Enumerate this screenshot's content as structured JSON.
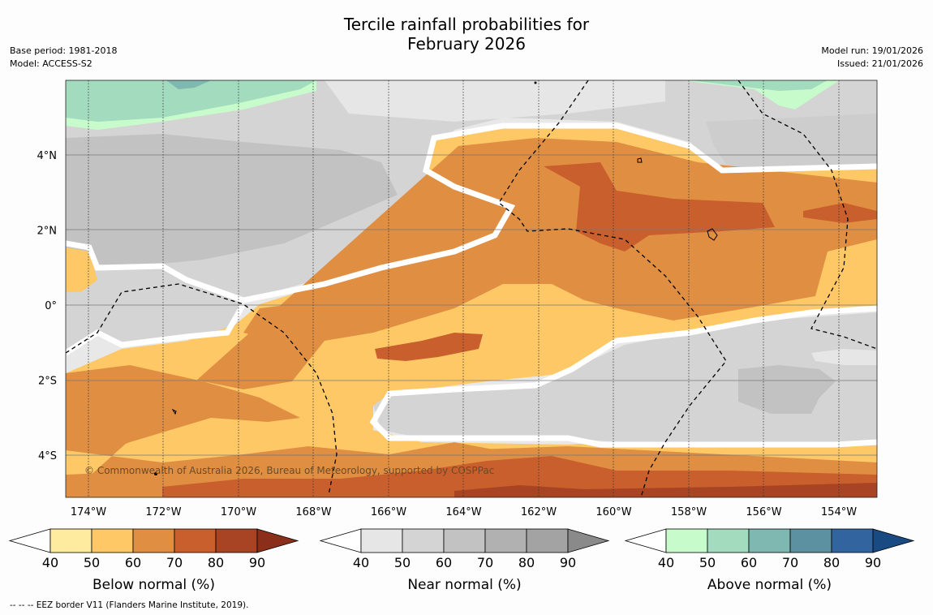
{
  "title_line1": "Tercile rainfall probabilities for",
  "title_line2": "February 2026",
  "base_period": "Base period: 1981-2018",
  "model": "Model: ACCESS-S2",
  "model_run": "Model run: 19/01/2026",
  "issued": "Issued: 21/01/2026",
  "copyright": "© Commonwealth of Australia 2026, Bureau of Meteorology, supported by COSPPac",
  "footnote": "--  --  -- EEZ border V11 (Flanders Marine Institute, 2019).",
  "lon_labels": [
    "174°W",
    "172°W",
    "170°W",
    "168°W",
    "166°W",
    "164°W",
    "162°W",
    "160°W",
    "158°W",
    "156°W",
    "154°W"
  ],
  "lat_labels": [
    "4°N",
    "2°N",
    "0°",
    "2°S",
    "4°S"
  ],
  "colorbars": [
    {
      "label": "Below normal (%)",
      "ticks": [
        "40",
        "50",
        "60",
        "70",
        "80",
        "90"
      ],
      "colors": [
        "#ffffff",
        "#ffeba0",
        "#fdc865",
        "#e08f42",
        "#c95f2d",
        "#a84424",
        "#8c2f1a"
      ]
    },
    {
      "label": "Near normal (%)",
      "ticks": [
        "40",
        "50",
        "60",
        "70",
        "80",
        "90"
      ],
      "colors": [
        "#ffffff",
        "#e6e6e6",
        "#d4d4d4",
        "#c2c2c2",
        "#b1b1b1",
        "#a3a3a3",
        "#8a8a8a"
      ]
    },
    {
      "label": "Above normal (%)",
      "ticks": [
        "40",
        "50",
        "60",
        "70",
        "80",
        "90"
      ],
      "colors": [
        "#ffffff",
        "#c8fbcb",
        "#a2dbbd",
        "#7fb8b0",
        "#5b91a0",
        "#3264a0",
        "#1a4a82"
      ]
    }
  ]
}
